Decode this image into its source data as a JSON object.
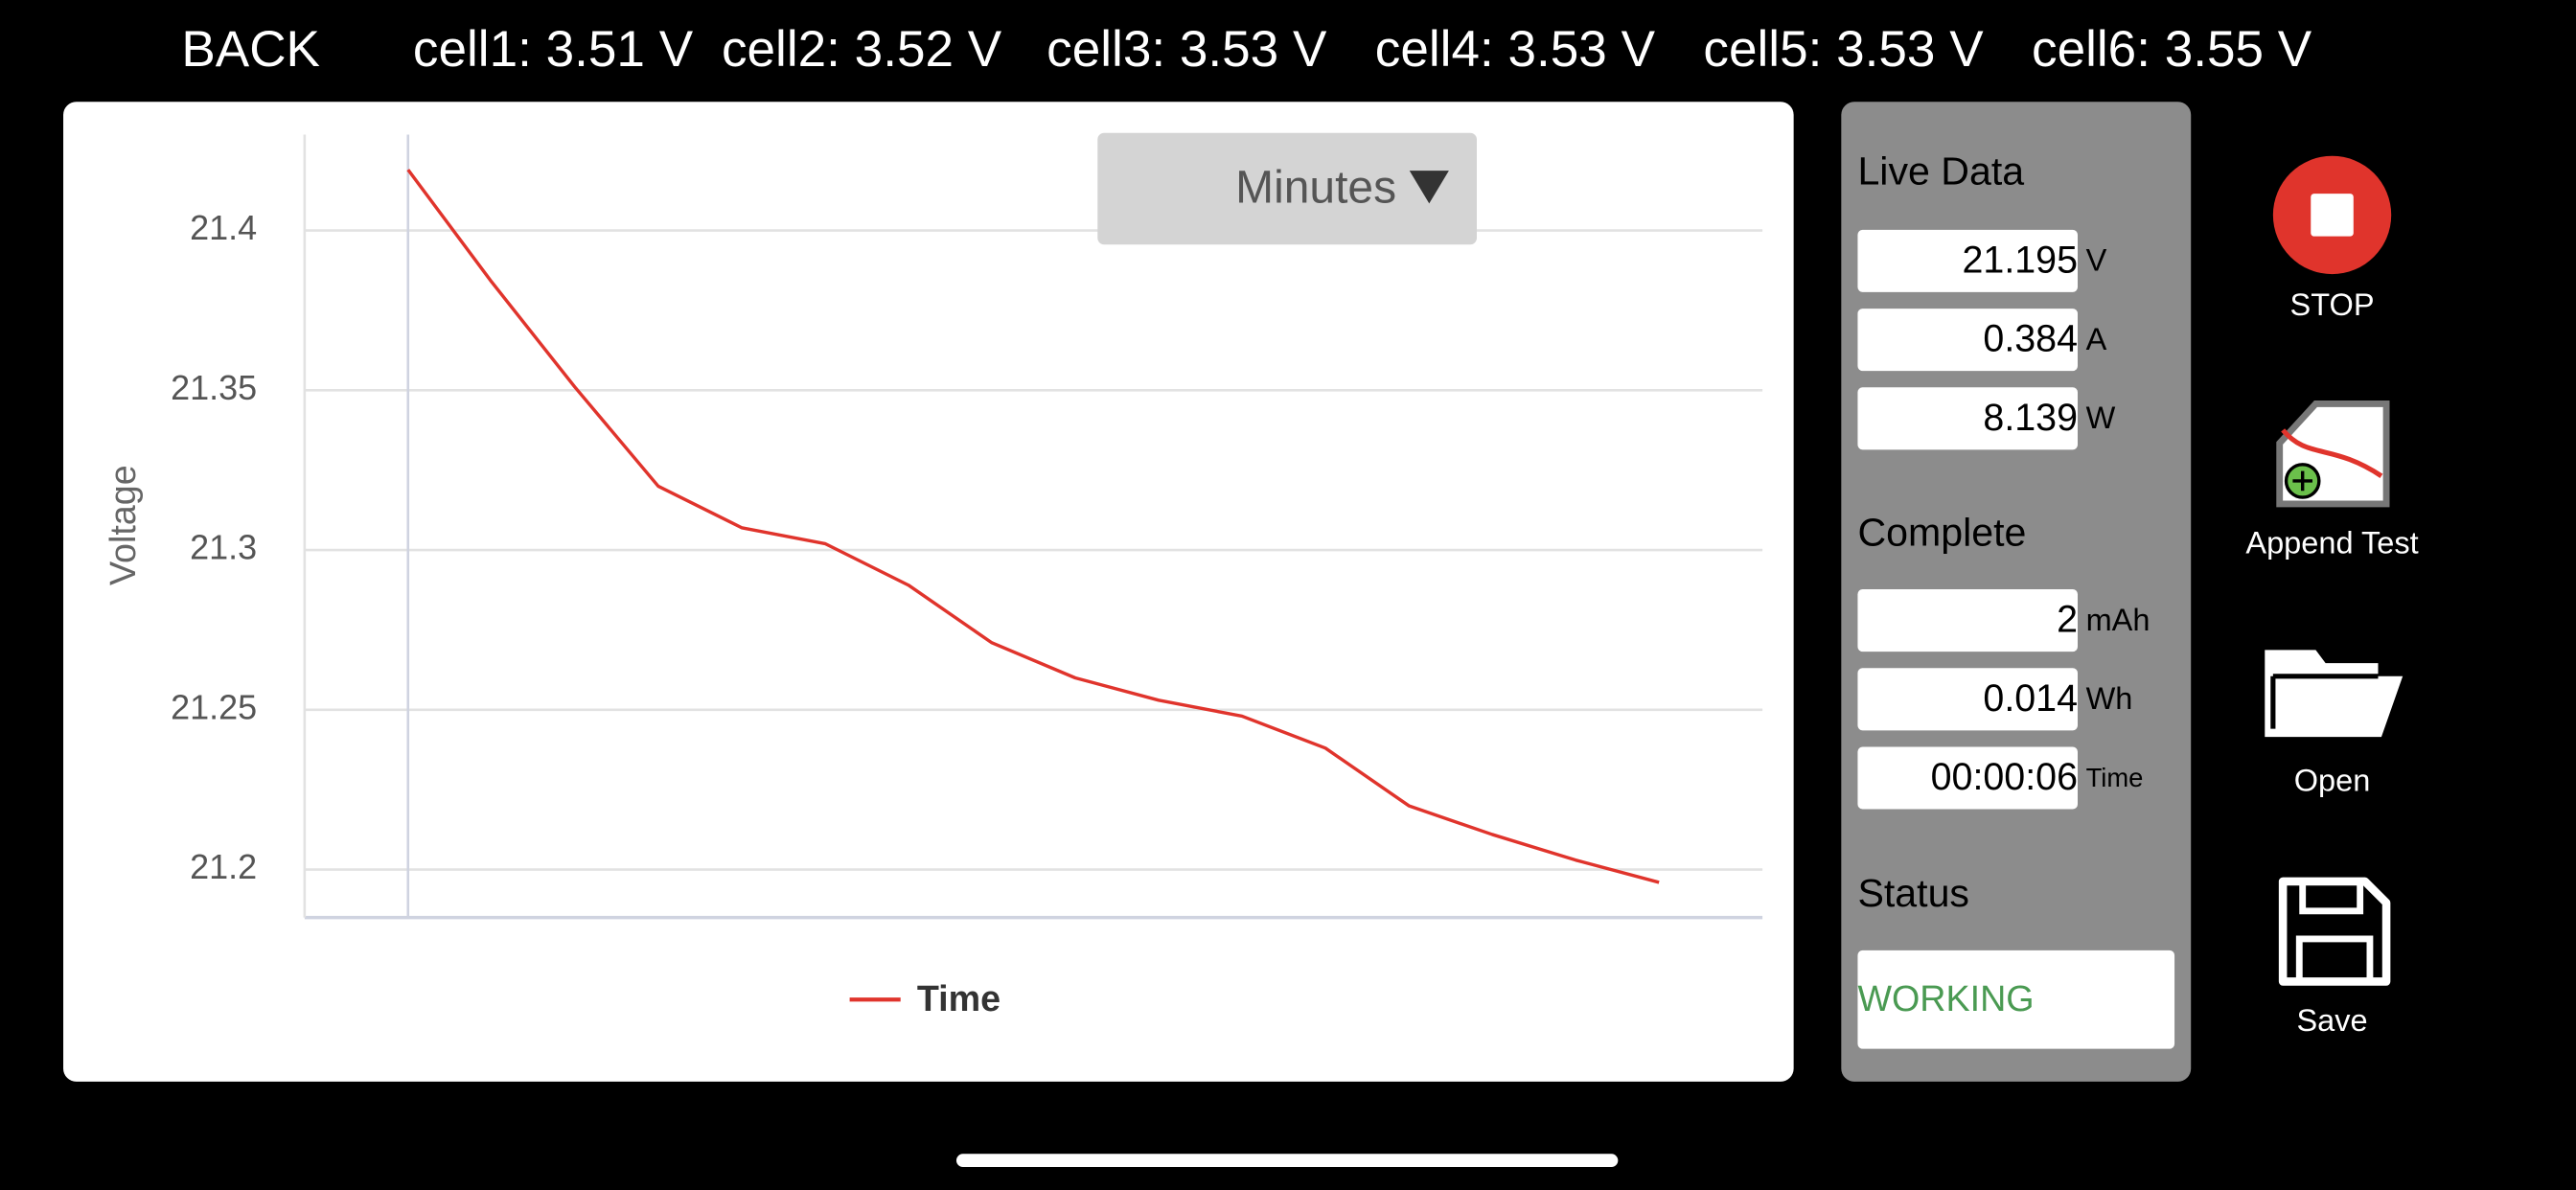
{
  "header": {
    "back": "BACK",
    "cells": [
      "cell1: 3.51 V",
      "cell2: 3.52 V",
      "cell3: 3.53 V",
      "cell4: 3.53 V",
      "cell5: 3.53 V",
      "cell6: 3.55 V"
    ]
  },
  "dropdown": "Minutes",
  "chart_data": {
    "type": "line",
    "y_label": "Voltage",
    "categories": [
      null,
      null,
      null,
      null,
      null,
      null,
      null,
      null,
      null,
      null,
      null,
      null,
      null,
      null,
      null,
      null
    ],
    "series": [
      {
        "name": "Time",
        "color": "#e0342c",
        "values": [
          21.419,
          21.384,
          21.351,
          21.32,
          21.307,
          21.302,
          21.289,
          21.271,
          21.26,
          21.253,
          21.248,
          21.238,
          21.22,
          21.211,
          21.203,
          21.196
        ]
      }
    ],
    "ylim": [
      21.185,
      21.43
    ],
    "yticks": [
      21.2,
      21.25,
      21.3,
      21.35,
      21.4
    ],
    "grid": true
  },
  "panel": {
    "live_title": "Live Data",
    "live": [
      {
        "value": 21.195,
        "unit": "V"
      },
      {
        "value": 0.384,
        "unit": "A"
      },
      {
        "value": 8.139,
        "unit": "W"
      }
    ],
    "complete_title": "Complete",
    "complete": [
      {
        "value": 2,
        "unit": "mAh"
      },
      {
        "value": 0.014,
        "unit": "Wh"
      },
      {
        "value": "00:00:06",
        "unit": "Time"
      }
    ],
    "status_title": "Status",
    "status": "WORKING"
  },
  "buttons": {
    "stop": "STOP",
    "append": "Append Test",
    "open": "Open",
    "save": "Save"
  }
}
